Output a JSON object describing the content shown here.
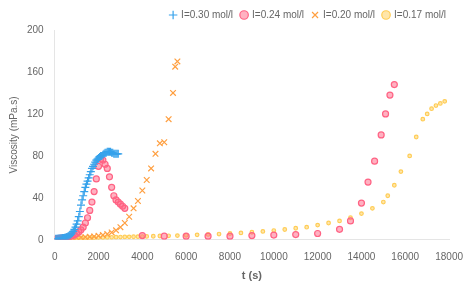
{
  "chart_data": {
    "type": "scatter",
    "xlabel": "t (s)",
    "ylabel": "Viscosity (mPa.s)",
    "xlim": [
      0,
      18000
    ],
    "ylim": [
      0,
      200
    ],
    "xticks": [
      0,
      2000,
      4000,
      6000,
      8000,
      10000,
      12000,
      14000,
      16000,
      18000
    ],
    "yticks": [
      0,
      40,
      80,
      120,
      160,
      200
    ],
    "grid": false,
    "legend": "upper right",
    "series": [
      {
        "name": "I=0.30 mol/l",
        "marker": "plus",
        "x": [
          50,
          100,
          150,
          200,
          250,
          300,
          350,
          400,
          450,
          500,
          550,
          600,
          650,
          700,
          750,
          800,
          850,
          900,
          950,
          1000,
          1050,
          1100,
          1150,
          1200,
          1250,
          1300,
          1350,
          1400,
          1450,
          1500,
          1550,
          1600,
          1650,
          1700,
          1750,
          1800,
          1850,
          1900,
          1950,
          2000,
          2050,
          2100,
          2150,
          2200,
          2250,
          2300,
          2350,
          2400,
          2450,
          2500,
          2550,
          2600,
          2650,
          2700,
          2750,
          2800,
          2850,
          2900
        ],
        "values": [
          1.0,
          1.1,
          1.2,
          1.3,
          1.4,
          1.5,
          1.6,
          1.8,
          2.0,
          2.3,
          2.7,
          3.2,
          3.8,
          4.5,
          5.5,
          6.5,
          8.0,
          10,
          12,
          15,
          18,
          22,
          27,
          33,
          38,
          42,
          46,
          50,
          53,
          56,
          59,
          62,
          65,
          68,
          70,
          72,
          74,
          76,
          77,
          78,
          79,
          80,
          80,
          81,
          82,
          83,
          83,
          84,
          84,
          84,
          84,
          83,
          83,
          82,
          82,
          82,
          82,
          82
        ]
      },
      {
        "name": "I=0.24 mol/l",
        "marker": "circle",
        "x": [
          100,
          200,
          300,
          400,
          500,
          600,
          700,
          800,
          900,
          1000,
          1100,
          1200,
          1300,
          1400,
          1500,
          1600,
          1700,
          1800,
          1900,
          2000,
          2100,
          2200,
          2300,
          2400,
          2500,
          2600,
          2700,
          2800,
          2900,
          3000,
          3100,
          3200,
          4000,
          5000,
          6000,
          7000,
          8000,
          9000,
          10000,
          11000,
          12000,
          13000,
          13500,
          14000,
          14300,
          14600,
          14900,
          15100,
          15300,
          15500
        ],
        "values": [
          1.2,
          1.4,
          1.6,
          1.9,
          2.2,
          2.6,
          3.1,
          3.8,
          4.7,
          6.0,
          7.5,
          9.5,
          12,
          16,
          21,
          28,
          36,
          46,
          58,
          70,
          77,
          76,
          72,
          68,
          60,
          50,
          42,
          38,
          36,
          34,
          32,
          30,
          4.0,
          3.5,
          3.5,
          3.5,
          3.5,
          4.0,
          4.5,
          5.0,
          6.0,
          10,
          18,
          35,
          55,
          75,
          100,
          120,
          138,
          148
        ]
      },
      {
        "name": "I=0.20 mol/l",
        "marker": "x",
        "x": [
          200,
          400,
          600,
          800,
          1000,
          1200,
          1400,
          1600,
          1800,
          2000,
          2200,
          2400,
          2600,
          2800,
          3000,
          3200,
          3400,
          3600,
          3800,
          4000,
          4200,
          4400,
          4600,
          4800,
          5000,
          5200,
          5400,
          5500,
          5600
        ],
        "values": [
          1.2,
          1.4,
          1.6,
          1.8,
          2.0,
          2.2,
          2.5,
          2.8,
          3.2,
          3.8,
          4.5,
          5.5,
          7.0,
          9.0,
          12,
          16,
          22,
          30,
          37,
          47,
          57,
          68,
          82,
          92,
          93,
          115,
          140,
          165,
          170
        ]
      },
      {
        "name": "I=0.17 mol/l",
        "marker": "point",
        "x": [
          200,
          400,
          600,
          800,
          1000,
          1200,
          1400,
          1600,
          1800,
          2000,
          2200,
          2400,
          2600,
          2800,
          3000,
          3200,
          3400,
          3600,
          3800,
          4000,
          4200,
          4500,
          4800,
          5200,
          5600,
          6000,
          6500,
          7000,
          7500,
          8000,
          8500,
          9000,
          9500,
          10000,
          10500,
          11000,
          11500,
          12000,
          12500,
          13000,
          13500,
          14000,
          14500,
          15000,
          15200,
          15500,
          15800,
          16200,
          16500,
          16800,
          17000,
          17200,
          17400,
          17600,
          17800
        ],
        "values": [
          1.2,
          1.3,
          1.4,
          1.5,
          1.6,
          1.7,
          1.8,
          1.9,
          2.0,
          2.1,
          2.2,
          2.3,
          2.4,
          2.5,
          2.6,
          2.7,
          2.8,
          2.9,
          3.0,
          3.1,
          3.2,
          3.4,
          3.6,
          3.8,
          4.0,
          4.3,
          4.7,
          5.1,
          5.5,
          6.0,
          6.6,
          7.2,
          8.0,
          8.8,
          9.8,
          11,
          12,
          14,
          16,
          18,
          21,
          25,
          30,
          36,
          42,
          52,
          65,
          80,
          98,
          115,
          120,
          125,
          128,
          130,
          132
        ]
      }
    ]
  }
}
